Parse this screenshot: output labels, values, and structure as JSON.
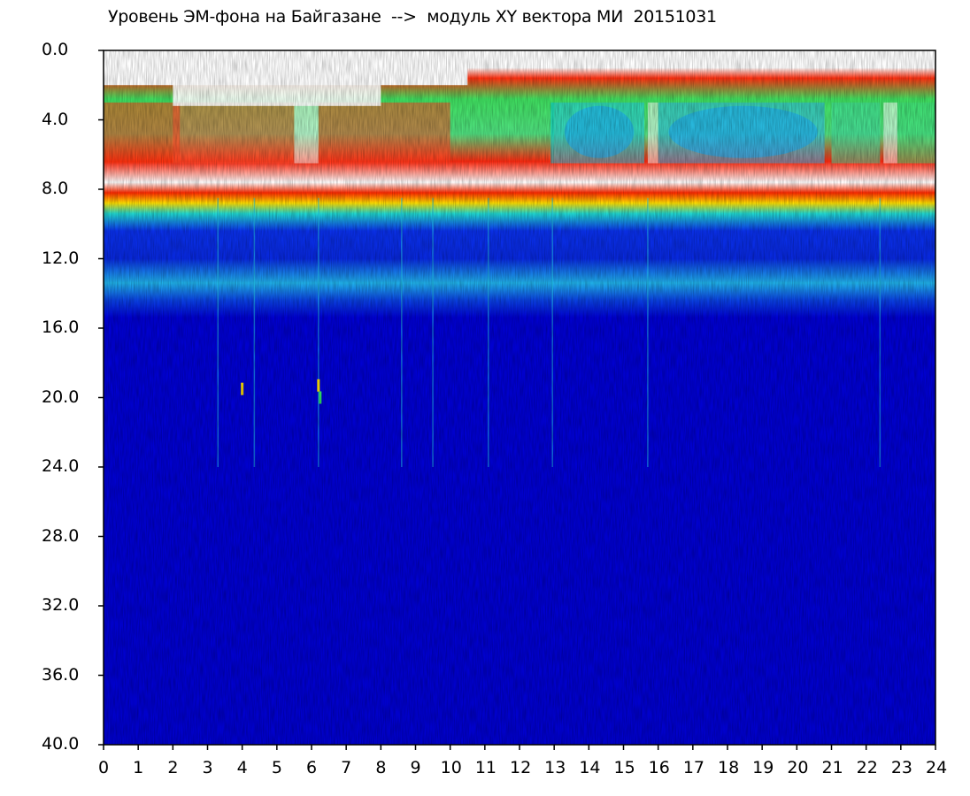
{
  "title": "Уровень ЭМ-фона на Байгазане  -->  модуль XY вектора МИ  20151031",
  "chart_data": {
    "type": "heatmap",
    "title": "Уровень ЭМ-фона на Байгазане  -->  модуль XY вектора МИ  20151031",
    "xlabel": "",
    "ylabel": "",
    "xlim": [
      0,
      24
    ],
    "ylim": [
      0.0,
      40.0
    ],
    "y_inverted": true,
    "x_ticks": [
      "0",
      "1",
      "2",
      "3",
      "4",
      "5",
      "6",
      "7",
      "8",
      "9",
      "10",
      "11",
      "12",
      "13",
      "14",
      "15",
      "16",
      "17",
      "18",
      "19",
      "20",
      "21",
      "22",
      "23",
      "24"
    ],
    "y_ticks": [
      "0.0",
      "4.0",
      "8.0",
      "12.0",
      "16.0",
      "20.0",
      "24.0",
      "28.0",
      "32.0",
      "36.0",
      "40.0"
    ],
    "grid": false,
    "colormap": [
      "#0000cc",
      "#0a2fe0",
      "#00c8e8",
      "#30e060",
      "#e8e800",
      "#ff2000",
      "#ffffff"
    ],
    "bands": [
      {
        "name": "upper",
        "y_from": 1.5,
        "y_to": 8.5,
        "dominant_colors": [
          "#ff2000",
          "#30e060",
          "#00c8e8"
        ]
      },
      {
        "name": "mid",
        "y_from": 8.5,
        "y_to": 15.0,
        "dominant_colors": [
          "#0a2fe0",
          "#00c8e8"
        ]
      },
      {
        "name": "lower",
        "y_from": 15.0,
        "y_to": 40.0,
        "dominant_colors": [
          "#0000cc"
        ]
      }
    ]
  }
}
